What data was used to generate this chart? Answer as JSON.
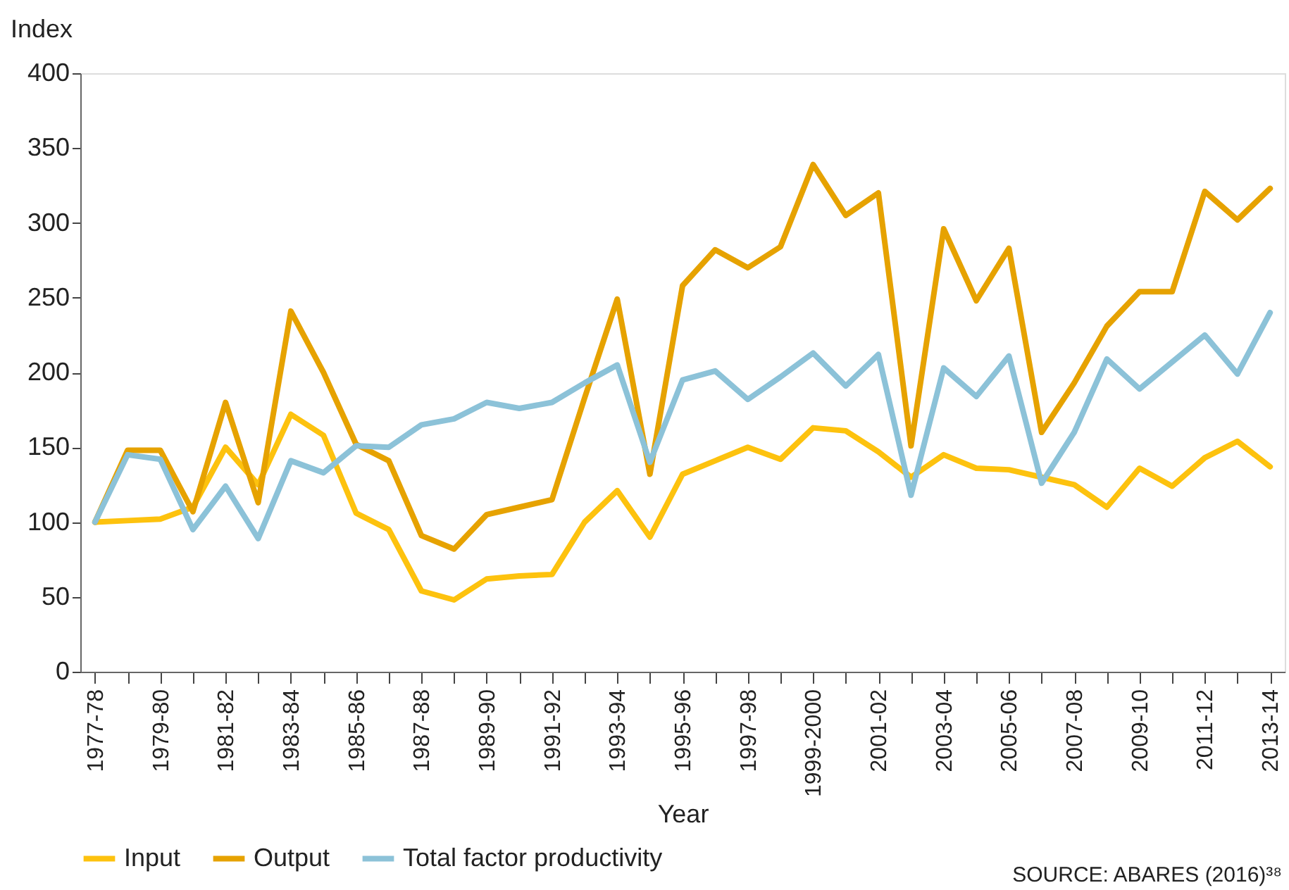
{
  "chart_data": {
    "type": "line",
    "xlabel": "Year",
    "ylabel": "Index",
    "categories": [
      "1977-78",
      null,
      "1979-80",
      null,
      "1981-82",
      null,
      "1983-84",
      null,
      "1985-86",
      null,
      "1987-88",
      null,
      "1989-90",
      null,
      "1991-92",
      null,
      "1993-94",
      null,
      "1995-96",
      null,
      "1997-98",
      null,
      "1999-2000",
      null,
      "2001-02",
      null,
      "2003-04",
      null,
      "2005-06",
      null,
      "2007-08",
      null,
      "2009-10",
      null,
      "2011-12",
      null,
      "2013-14"
    ],
    "series": [
      {
        "name": "Input",
        "color": "#fdc20e",
        "values": [
          100,
          101,
          102,
          110,
          150,
          125,
          172,
          158,
          106,
          95,
          54,
          48,
          62,
          64,
          65,
          100,
          121,
          90,
          132,
          141,
          150,
          142,
          163,
          161,
          147,
          130,
          145,
          136,
          135,
          130,
          125,
          110,
          136,
          124,
          143,
          154,
          137
        ]
      },
      {
        "name": "Output",
        "color": "#e6a200",
        "values": [
          100,
          148,
          148,
          107,
          180,
          113,
          241,
          200,
          152,
          141,
          91,
          82,
          105,
          110,
          115,
          183,
          249,
          132,
          258,
          282,
          270,
          284,
          339,
          305,
          320,
          151,
          296,
          248,
          283,
          160,
          193,
          231,
          254,
          254,
          321,
          302,
          323
        ]
      },
      {
        "name": "Total factor productivity",
        "color": "#8cc2d8",
        "values": [
          100,
          145,
          142,
          95,
          124,
          89,
          141,
          133,
          151,
          150,
          165,
          169,
          180,
          176,
          180,
          193,
          205,
          140,
          195,
          201,
          182,
          197,
          213,
          191,
          212,
          118,
          203,
          184,
          211,
          126,
          160,
          209,
          189,
          207,
          225,
          199,
          240
        ]
      }
    ],
    "ylim": [
      0,
      400
    ],
    "yticks": [
      0,
      50,
      100,
      150,
      200,
      250,
      300,
      350,
      400
    ],
    "grid": false,
    "legend": "bottom",
    "line_style": "solid",
    "marker": "none",
    "annotations": [
      "SOURCE: ABARES (2016)³⁸"
    ]
  }
}
